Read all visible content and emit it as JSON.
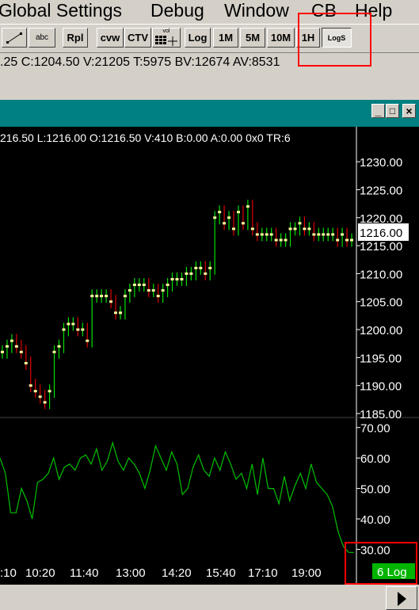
{
  "menu": {
    "items": [
      "Global Settings",
      "Debug",
      "Window",
      "CB",
      "Help"
    ]
  },
  "toolbar": {
    "abc_label": "abc",
    "rpl_label": "Rpl",
    "cvw_label": "cvw",
    "ctv_label": "CTV",
    "vol_label": "vol",
    "log_label": "Log",
    "m1_label": "1M",
    "m5_label": "5M",
    "m10_label": "10M",
    "h1_label": "1H",
    "logs_label": "LogS"
  },
  "info": {
    "text": ".25  C:1204.50  V:21205  T:5975  BV:12674  AV:8531"
  },
  "window": {
    "min_label": "_",
    "max_label": "□",
    "close_label": "×"
  },
  "chart": {
    "header": "216.50 L:1216.00 O:1216.50 V:410 B:0.00 A:0.00 0x0 TR:6",
    "last_price": "1216.00",
    "scale_label": "6 Log"
  },
  "chart_data": [
    {
      "type": "ohlc",
      "ylim": [
        1185,
        1232
      ],
      "yticks": [
        "1230.00",
        "1225.00",
        "1220.00",
        "1215.00",
        "1210.00",
        "1205.00",
        "1200.00",
        "1195.00",
        "1190.00",
        "1185.00"
      ],
      "ytick_values": [
        1230,
        1225,
        1220,
        1215,
        1210,
        1205,
        1200,
        1195,
        1190,
        1185
      ],
      "last_value": 1216.0,
      "close": [
        1196,
        1197,
        1198,
        1197,
        1196,
        1194,
        1190,
        1189,
        1188,
        1187,
        1189,
        1196,
        1197,
        1200,
        1201,
        1201,
        1200,
        1200,
        1198,
        1206,
        1206,
        1206,
        1206,
        1205,
        1203,
        1203,
        1206,
        1207,
        1208,
        1208,
        1208,
        1207,
        1207,
        1206,
        1207,
        1208,
        1209,
        1209,
        1209,
        1210,
        1210,
        1211,
        1211,
        1210,
        1211,
        1220,
        1221,
        1219,
        1220,
        1218,
        1221,
        1219,
        1222,
        1218,
        1217,
        1217,
        1217,
        1217,
        1216,
        1216,
        1216,
        1218,
        1218,
        1219,
        1218,
        1218,
        1217,
        1217,
        1217,
        1217,
        1217,
        1216,
        1217,
        1216,
        1216
      ]
    },
    {
      "type": "line",
      "ylim": [
        27,
        72
      ],
      "yticks": [
        "70.00",
        "60.00",
        "50.00",
        "40.00",
        "30.00"
      ],
      "ytick_values": [
        70,
        60,
        50,
        40,
        30
      ],
      "values": [
        60,
        55,
        42,
        42,
        50,
        46,
        40,
        52,
        53,
        55,
        60,
        53,
        57,
        58,
        56,
        60,
        61,
        58,
        63,
        56,
        59,
        65,
        59,
        56,
        60,
        58,
        55,
        50,
        56,
        64,
        60,
        56,
        62,
        58,
        48,
        50,
        57,
        61,
        56,
        54,
        60,
        56,
        62,
        58,
        53,
        55,
        50,
        58,
        48,
        60,
        50,
        50,
        45,
        54,
        46,
        51,
        55,
        50,
        58,
        52,
        50,
        48,
        44,
        36,
        31,
        29,
        29
      ]
    },
    {
      "type": "xaxis",
      "labels": [
        ":10",
        "10:20",
        "11:40",
        "13:00",
        "14:20",
        "15:40",
        "17:10",
        "19:00"
      ]
    }
  ]
}
